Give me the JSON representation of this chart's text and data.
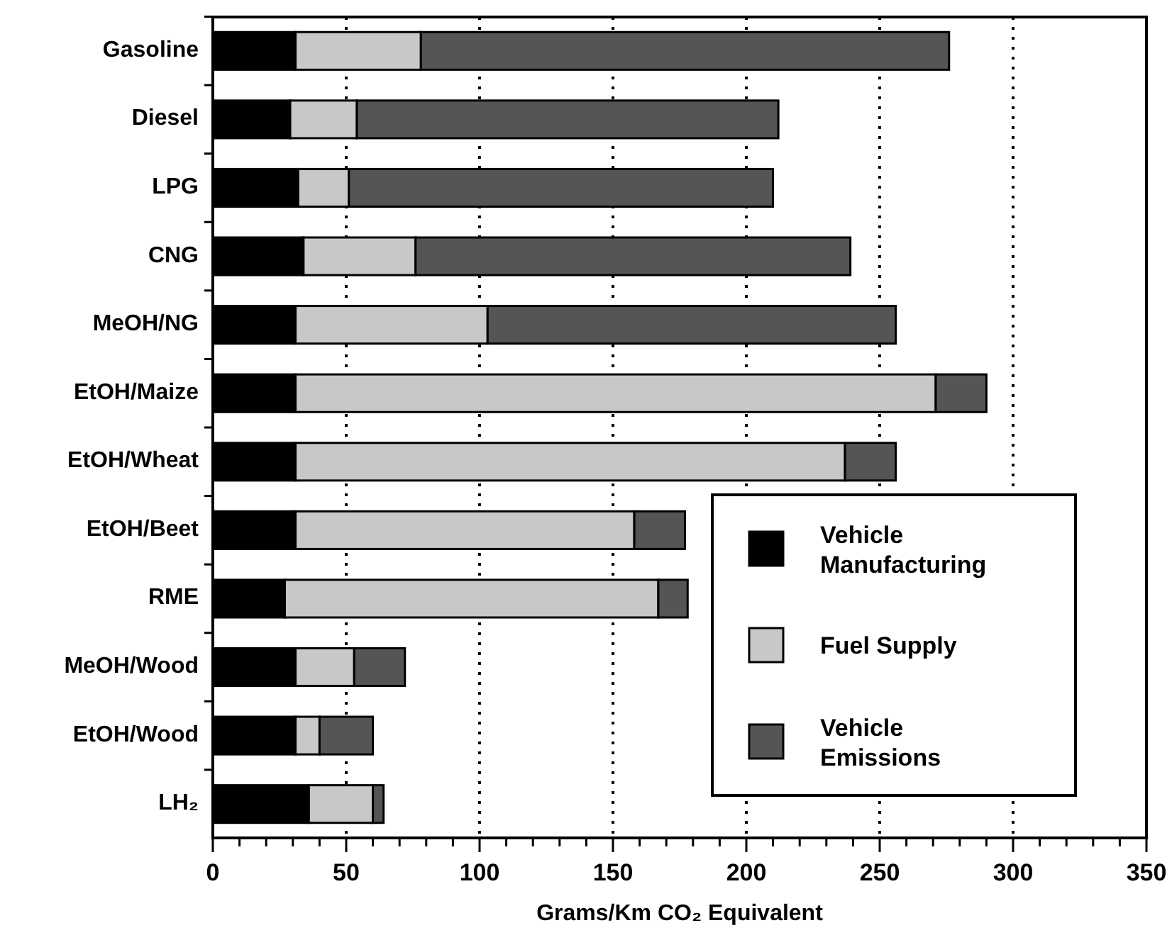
{
  "chart_data": {
    "type": "bar",
    "orientation": "horizontal",
    "stacked": true,
    "xlabel": "Grams/Km CO₂ Equivalent",
    "categories": [
      "Gasoline",
      "Diesel",
      "LPG",
      "CNG",
      "MeOH/NG",
      "EtOH/Maize",
      "EtOH/Wheat",
      "EtOH/Beet",
      "RME",
      "MeOH/Wood",
      "EtOH/Wood",
      "LH₂"
    ],
    "series": [
      {
        "name": "Vehicle Manufacturing",
        "color": "#000000",
        "values": [
          31,
          29,
          32,
          34,
          31,
          31,
          31,
          31,
          27,
          31,
          31,
          36
        ]
      },
      {
        "name": "Fuel Supply",
        "color": "#c8c8c8",
        "values": [
          47,
          25,
          19,
          42,
          72,
          240,
          206,
          127,
          140,
          22,
          9,
          24
        ]
      },
      {
        "name": "Vehicle Emissions",
        "color": "#555555",
        "values": [
          198,
          158,
          159,
          163,
          153,
          19,
          19,
          19,
          11,
          19,
          20,
          4
        ]
      }
    ],
    "xlim": [
      0,
      350
    ],
    "xticks": [
      0,
      {
        "value": 10,
        "label": null
      },
      {
        "value": 20,
        "label": null
      },
      {
        "value": 30,
        "label": null
      },
      {
        "value": 40,
        "label": null
      },
      50,
      {
        "value": 60,
        "label": null
      },
      {
        "value": 70,
        "label": null
      },
      {
        "value": 80,
        "label": null
      },
      {
        "value": 90,
        "label": null
      },
      100,
      {
        "value": 110,
        "label": null
      },
      {
        "value": 120,
        "label": null
      },
      {
        "value": 130,
        "label": null
      },
      {
        "value": 140,
        "label": null
      },
      150,
      {
        "value": 160,
        "label": null
      },
      {
        "value": 170,
        "label": null
      },
      {
        "value": 180,
        "label": null
      },
      {
        "value": 190,
        "label": null
      },
      200,
      {
        "value": 210,
        "label": null
      },
      {
        "value": 220,
        "label": null
      },
      {
        "value": 230,
        "label": null
      },
      {
        "value": 240,
        "label": null
      },
      250,
      {
        "value": 260,
        "label": null
      },
      {
        "value": 270,
        "label": null
      },
      {
        "value": 280,
        "label": null
      },
      {
        "value": 290,
        "label": null
      },
      300,
      {
        "value": 310,
        "label": null
      },
      {
        "value": 320,
        "label": null
      },
      {
        "value": 330,
        "label": null
      },
      {
        "value": 340,
        "label": null
      },
      350
    ],
    "grid": "x",
    "legend": "bottom right"
  }
}
